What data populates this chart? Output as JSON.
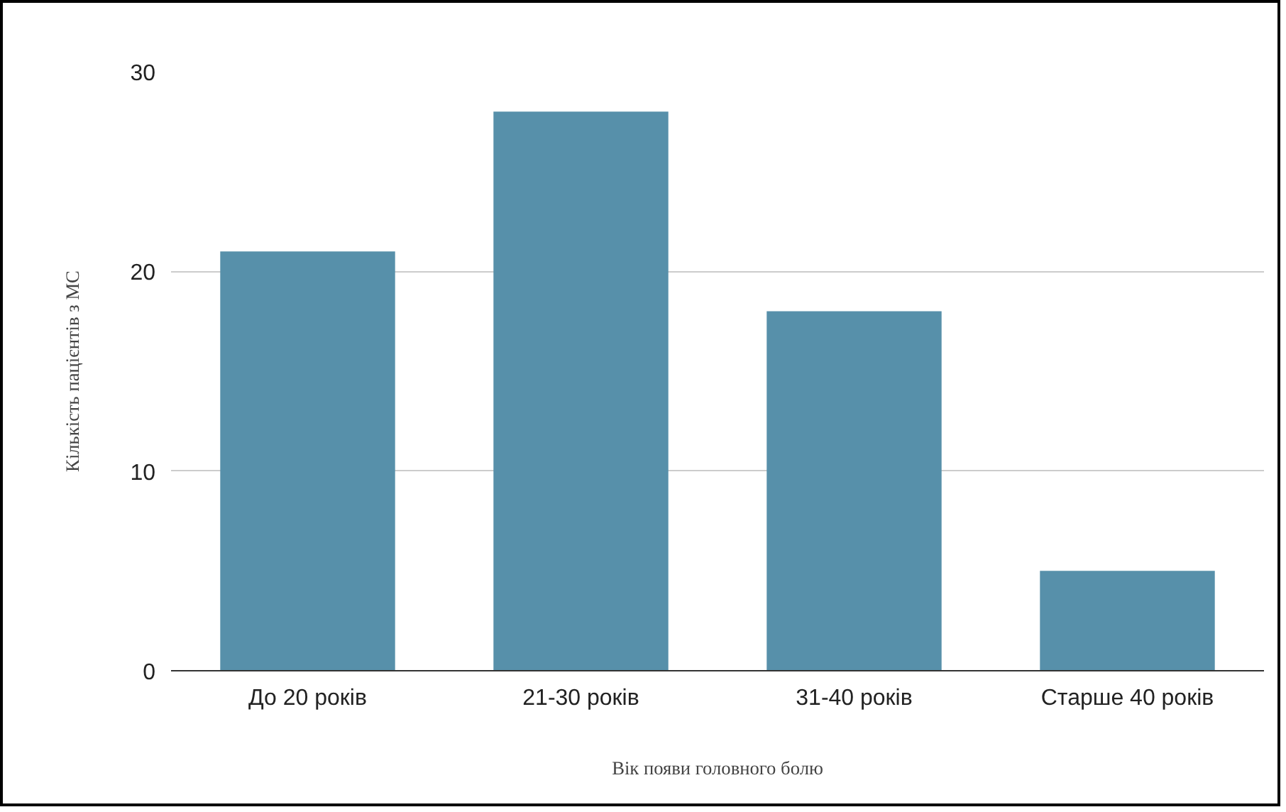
{
  "chart_data": {
    "type": "bar",
    "xlabel": "Вік появи головного болю",
    "ylabel": "Кількість пацієнтів з МС",
    "categories": [
      "До 20 років",
      "21-30 років",
      "31-40 років",
      "Старше 40 років"
    ],
    "values": [
      21,
      28,
      18,
      5
    ],
    "color": "#5790aa",
    "ylim": [
      0,
      30
    ],
    "yticks": [
      0,
      10,
      20,
      30
    ],
    "grid": "y"
  }
}
